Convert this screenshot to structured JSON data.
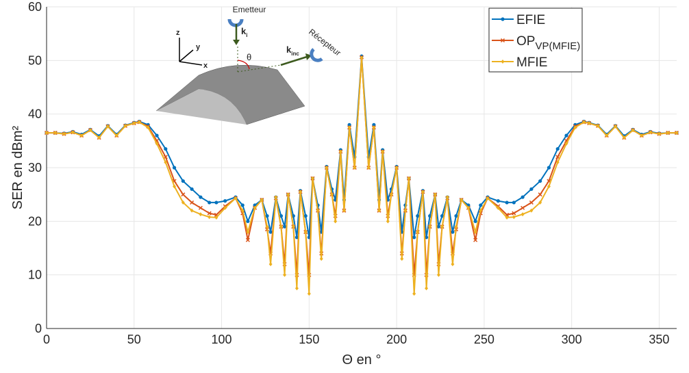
{
  "chart_data": {
    "type": "line",
    "xlabel": "Θ en °",
    "ylabel": "SER en dBm²",
    "x": [
      0,
      5,
      10,
      15,
      20,
      25,
      30,
      35,
      40,
      45,
      50,
      53,
      58,
      63,
      68,
      73,
      78,
      83,
      88,
      93,
      97,
      102,
      108,
      112,
      115,
      119,
      123,
      126,
      128,
      131,
      134,
      136,
      138,
      141,
      143,
      145,
      148,
      150,
      152,
      155,
      157,
      160,
      163,
      165,
      168,
      170,
      173,
      176,
      180,
      184,
      187,
      190,
      192,
      195,
      197,
      200,
      203,
      205,
      207,
      210,
      212,
      215,
      217,
      219,
      222,
      224,
      226,
      229,
      232,
      234,
      237,
      241,
      245,
      248,
      252,
      258,
      263,
      267,
      272,
      277,
      282,
      287,
      292,
      297,
      302,
      307,
      310,
      315,
      320,
      325,
      330,
      335,
      340,
      345,
      350,
      355,
      360
    ],
    "series": [
      {
        "name": "EFIE",
        "color": "#0072bd",
        "marker": "circle",
        "values": [
          36.5,
          36.5,
          36.4,
          36.7,
          36.2,
          37.1,
          35.9,
          37.8,
          36.2,
          37.9,
          38.4,
          38.6,
          38,
          36,
          33.5,
          30,
          27.5,
          26,
          24.5,
          23.5,
          23.5,
          23.8,
          24.5,
          23,
          20,
          23,
          24,
          21,
          18,
          24.5,
          21,
          19,
          25,
          21,
          17,
          25.7,
          21,
          17,
          28,
          23,
          18,
          30.2,
          26,
          24,
          33.3,
          24,
          38,
          32,
          50.8,
          32,
          38,
          24,
          33.3,
          24,
          26,
          30.2,
          18,
          23,
          28,
          17,
          21,
          25.7,
          17,
          21,
          25,
          19,
          21,
          24.5,
          18,
          21,
          24,
          23,
          20,
          23,
          24.5,
          23.8,
          23.5,
          23.5,
          24.5,
          26,
          27.5,
          30,
          33.5,
          36,
          38,
          38.6,
          38.4,
          37.9,
          36.2,
          37.8,
          35.9,
          37.1,
          36.2,
          36.7,
          36.4,
          36.5,
          36.5
        ]
      },
      {
        "name": "OP",
        "name_sub": "VP(MFIE)",
        "color": "#d95319",
        "marker": "cross",
        "values": [
          36.5,
          36.5,
          36.3,
          36.6,
          36,
          37,
          35.6,
          37.7,
          36,
          37.8,
          38.3,
          38.5,
          37.7,
          35,
          32,
          27.5,
          25,
          23.5,
          22.5,
          21.5,
          21.2,
          22.8,
          24.3,
          21.5,
          16.5,
          22.5,
          24,
          18.5,
          14,
          24.3,
          19,
          12,
          25,
          19,
          10,
          25.5,
          18,
          10,
          28,
          22,
          14,
          30,
          25,
          21,
          33,
          22,
          37.5,
          30,
          50.6,
          30,
          37.5,
          22,
          33,
          21,
          25,
          30,
          14,
          22,
          28,
          10,
          18,
          25.5,
          10,
          19,
          25,
          12,
          19,
          24.3,
          14,
          18.5,
          24,
          22.5,
          16.5,
          21.5,
          24.3,
          22.8,
          21.2,
          21.5,
          22.5,
          23.5,
          25,
          27.5,
          32,
          35,
          37.7,
          38.5,
          38.3,
          37.8,
          36,
          37.7,
          35.6,
          37,
          36,
          36.6,
          36.3,
          36.5,
          36.5
        ]
      },
      {
        "name": "MFIE",
        "color": "#edb120",
        "marker": "diamond",
        "values": [
          36.5,
          36.5,
          36.3,
          36.6,
          36,
          37,
          35.6,
          37.7,
          36,
          37.8,
          38.3,
          38.5,
          37.5,
          34.5,
          31,
          26.5,
          23.5,
          22,
          21.3,
          20.8,
          20.7,
          22.5,
          24.3,
          22,
          18,
          22.5,
          24,
          19,
          12,
          24.5,
          19,
          10,
          25,
          19,
          7.5,
          25.5,
          18,
          6.5,
          28,
          22,
          13,
          30,
          25,
          20,
          33,
          22,
          37.5,
          30,
          50.5,
          30,
          37.5,
          22,
          33,
          20,
          25,
          30,
          13,
          22,
          28,
          6.5,
          18,
          25.5,
          7.5,
          19,
          25,
          10,
          19,
          24.5,
          12,
          19,
          24,
          22.5,
          18,
          22,
          24.3,
          22.5,
          20.7,
          20.8,
          21.3,
          22,
          23.5,
          26.5,
          31,
          34.5,
          37.5,
          38.5,
          38.3,
          37.8,
          36,
          37.7,
          35.6,
          37,
          36,
          36.6,
          36.3,
          36.5,
          36.5
        ]
      }
    ],
    "xlim": [
      0,
      360
    ],
    "ylim": [
      0,
      60
    ],
    "xticks": [
      0,
      50,
      100,
      150,
      200,
      250,
      300,
      350
    ],
    "yticks": [
      0,
      10,
      20,
      30,
      40,
      50,
      60
    ],
    "grid": true,
    "legend": "top-right",
    "inset": {
      "emitter": "Emetteur",
      "receiver": "Récepteur",
      "k_i": "k",
      "k_i_sub": "i",
      "k_inc": "k",
      "k_inc_sub": "inc",
      "theta": "θ",
      "axis_z": "z",
      "axis_y": "y",
      "axis_x": "x"
    }
  }
}
